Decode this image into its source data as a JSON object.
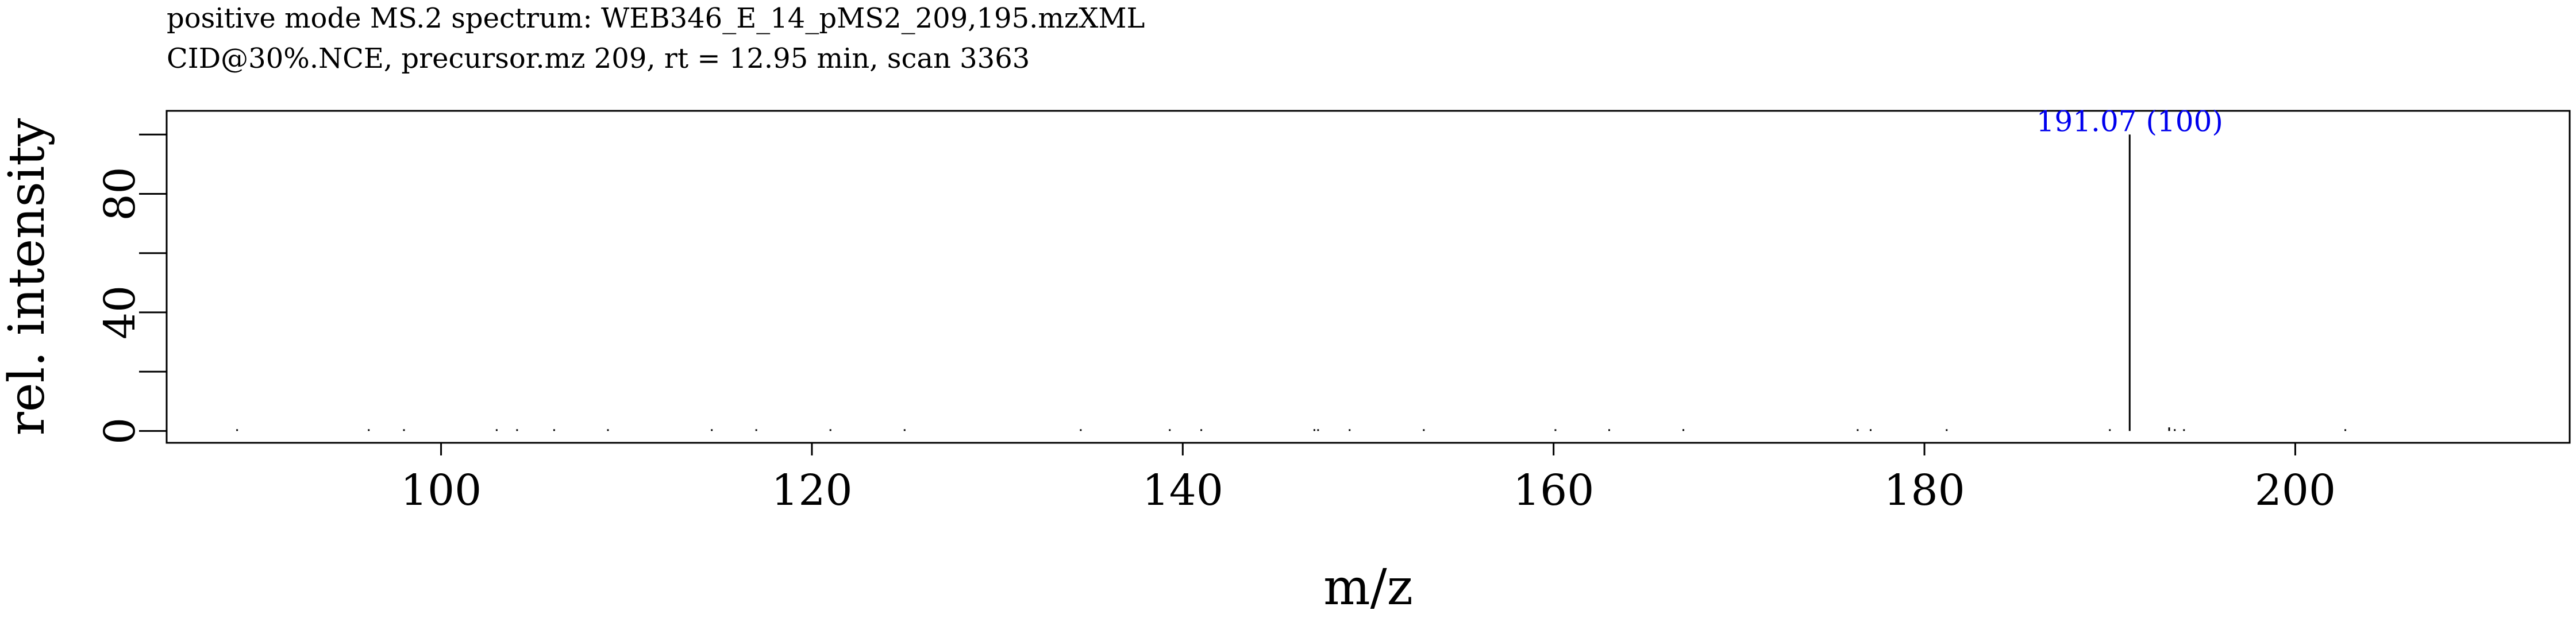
{
  "chart_data": {
    "type": "spectrum",
    "title": "positive mode MS.2 spectrum: WEB346_E_14_pMS2_209,195.mzXML",
    "subtitle": "CID@30%.NCE, precursor.mz 209, rt = 12.95 min, scan 3363",
    "xlabel": "m/z",
    "ylabel": "rel. intensity",
    "xlim": [
      85.2,
      214.8
    ],
    "ylim": [
      -4,
      108
    ],
    "xticks": [
      100,
      120,
      140,
      160,
      180,
      200
    ],
    "yticks": [
      0,
      20,
      40,
      60,
      80,
      100
    ],
    "ytick_labels": [
      0,
      40,
      80
    ],
    "grid": false,
    "peaks": [
      {
        "mz": 89.0,
        "intensity": 0.3
      },
      {
        "mz": 96.1,
        "intensity": 0.3
      },
      {
        "mz": 98.0,
        "intensity": 0.3
      },
      {
        "mz": 103.0,
        "intensity": 0.3
      },
      {
        "mz": 104.1,
        "intensity": 0.3
      },
      {
        "mz": 106.1,
        "intensity": 0.3
      },
      {
        "mz": 109.0,
        "intensity": 0.3
      },
      {
        "mz": 114.6,
        "intensity": 0.3
      },
      {
        "mz": 117.0,
        "intensity": 0.3
      },
      {
        "mz": 121.0,
        "intensity": 0.3
      },
      {
        "mz": 125.0,
        "intensity": 0.3
      },
      {
        "mz": 134.5,
        "intensity": 0.3
      },
      {
        "mz": 139.3,
        "intensity": 0.3
      },
      {
        "mz": 141.0,
        "intensity": 0.3
      },
      {
        "mz": 147.1,
        "intensity": 0.6
      },
      {
        "mz": 147.3,
        "intensity": 0.5
      },
      {
        "mz": 149.0,
        "intensity": 0.3
      },
      {
        "mz": 153.0,
        "intensity": 0.3
      },
      {
        "mz": 160.1,
        "intensity": 0.3
      },
      {
        "mz": 163.0,
        "intensity": 0.3
      },
      {
        "mz": 167.0,
        "intensity": 0.6
      },
      {
        "mz": 176.4,
        "intensity": 0.3
      },
      {
        "mz": 177.1,
        "intensity": 0.3
      },
      {
        "mz": 181.2,
        "intensity": 0.3
      },
      {
        "mz": 190.0,
        "intensity": 0.3
      },
      {
        "mz": 191.07,
        "intensity": 100,
        "label": "191.07 (100)"
      },
      {
        "mz": 193.2,
        "intensity": 1.2
      },
      {
        "mz": 193.5,
        "intensity": 0.6
      },
      {
        "mz": 194.0,
        "intensity": 0.3
      },
      {
        "mz": 202.7,
        "intensity": 0.3
      }
    ],
    "peak_color": "#000000",
    "label_color": "#0000ee"
  }
}
